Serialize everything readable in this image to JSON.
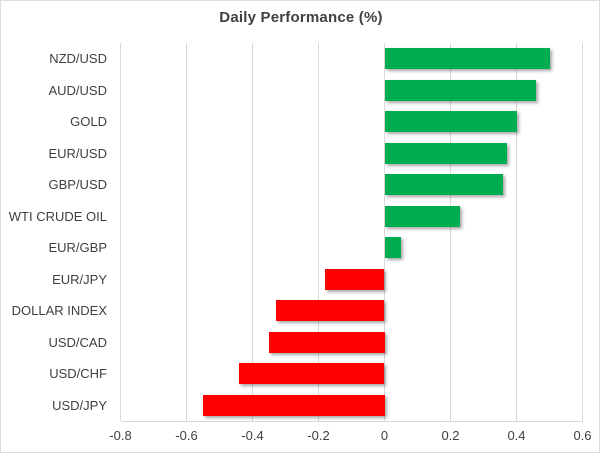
{
  "title": "Daily Performance (%)",
  "chart_data": {
    "type": "bar",
    "orientation": "horizontal",
    "title": "Daily Performance (%)",
    "categories": [
      "NZD/USD",
      "AUD/USD",
      "GOLD",
      "EUR/USD",
      "GBP/USD",
      "WTI CRUDE OIL",
      "EUR/GBP",
      "EUR/JPY",
      "DOLLAR INDEX",
      "USD/CAD",
      "USD/CHF",
      "USD/JPY"
    ],
    "values": [
      0.5,
      0.46,
      0.4,
      0.37,
      0.36,
      0.23,
      0.05,
      -0.18,
      -0.33,
      -0.35,
      -0.44,
      -0.55
    ],
    "xlabel": "",
    "ylabel": "",
    "xlim": [
      -0.8,
      0.6
    ],
    "tick_values": [
      -0.8,
      -0.6,
      -0.4,
      -0.2,
      0,
      0.2,
      0.4,
      0.6
    ],
    "tick_labels": [
      "-0.8",
      "-0.6",
      "-0.4",
      "-0.2",
      "0",
      "0.2",
      "0.4",
      "0.6"
    ],
    "grid": true,
    "legend": "none",
    "colors": {
      "positive": "#00AC50",
      "negative": "#FF0000",
      "gridline": "#D9D9D9",
      "axis_line": "#D9D9D9",
      "title_text": "#404040",
      "category_text": "#404040",
      "tick_text": "#404040",
      "border": "#DCDCDC",
      "background": "#FFFFFF"
    }
  }
}
